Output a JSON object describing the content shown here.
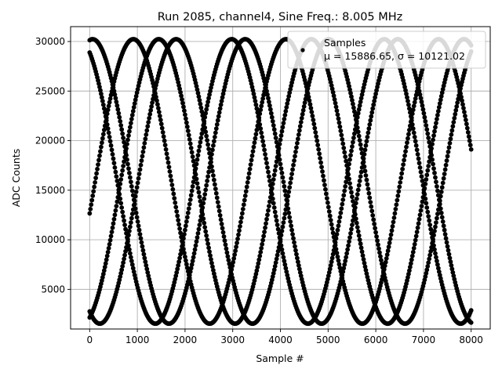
{
  "chart_data": {
    "type": "scatter",
    "title": "Run 2085, channel4, Sine Freq.: 8.005 MHz",
    "xlabel": "Sample #",
    "ylabel": "ADC Counts",
    "xlim": [
      -400,
      8400
    ],
    "ylim": [
      1000,
      31500
    ],
    "x_ticks": [
      0,
      1000,
      2000,
      3000,
      4000,
      5000,
      6000,
      7000,
      8000
    ],
    "y_ticks": [
      5000,
      10000,
      15000,
      20000,
      25000,
      30000
    ],
    "grid": true,
    "legend": {
      "placement": "upper-right",
      "entries": [
        {
          "label": "Samples",
          "stats": "μ = 15886.65, σ = 10121.02"
        }
      ]
    },
    "series": [
      {
        "name": "Samples",
        "marker": "point",
        "color": "#000000",
        "x_range": [
          0,
          8000
        ],
        "waveform": {
          "mean": 15886.65,
          "amplitude": 14350,
          "period_samples": 3200,
          "phases_deg": [
            115,
            287,
            83,
            246,
            347
          ],
          "note_visible": "five interleaved sine traces"
        }
      }
    ]
  },
  "colors": {
    "points": "#000000",
    "grid": "#b0b0b0",
    "axes": "#000000",
    "background": "#ffffff"
  }
}
